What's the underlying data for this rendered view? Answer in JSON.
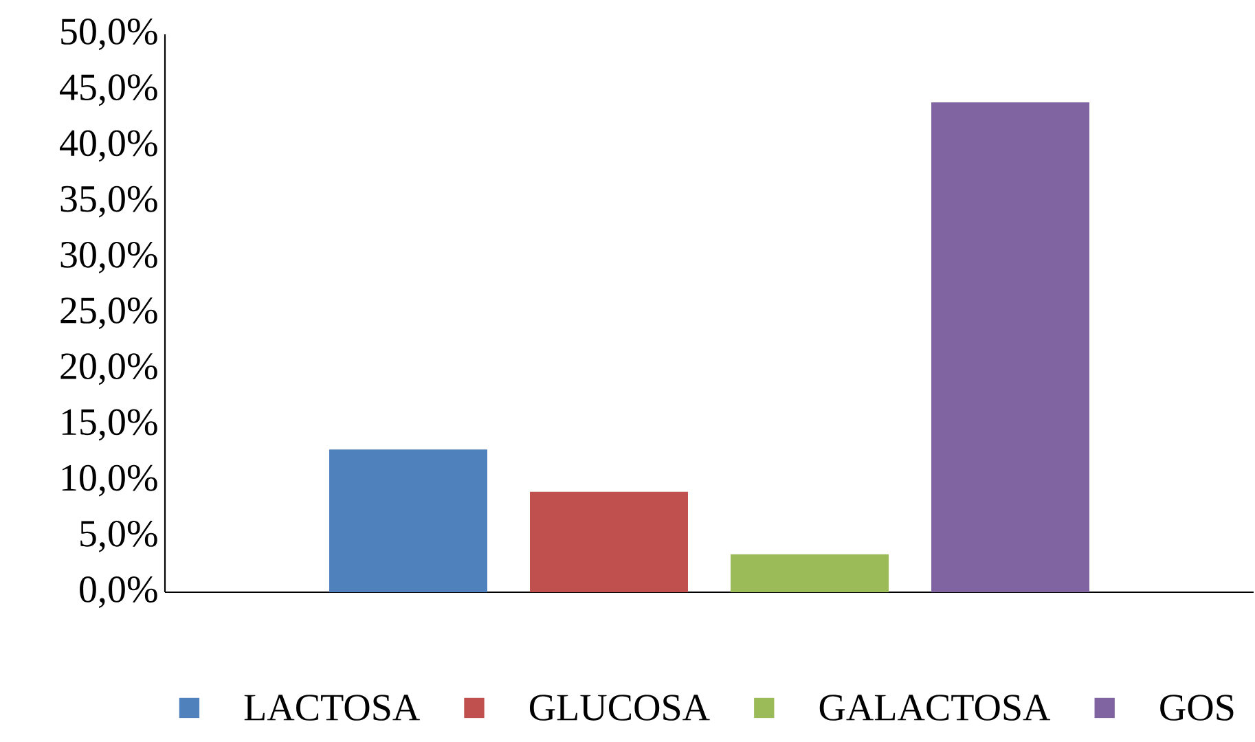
{
  "chart_data": {
    "type": "bar",
    "categories": [
      null
    ],
    "series": [
      {
        "name": "LACTOSA",
        "color": "#4f81bd",
        "values": [
          12.8
        ]
      },
      {
        "name": "GLUCOSA",
        "color": "#c0504d",
        "values": [
          9.0
        ]
      },
      {
        "name": "GALACTOSA",
        "color": "#9bbb59",
        "values": [
          3.4
        ]
      },
      {
        "name": "GOS",
        "color": "#8064a2",
        "values": [
          43.9
        ]
      }
    ],
    "ylim": [
      0,
      50
    ],
    "yticks": [
      {
        "value": 0,
        "label": "0,0%"
      },
      {
        "value": 5,
        "label": "5,0%"
      },
      {
        "value": 10,
        "label": "10,0%"
      },
      {
        "value": 15,
        "label": "15,0%"
      },
      {
        "value": 20,
        "label": "20,0%"
      },
      {
        "value": 25,
        "label": "25,0%"
      },
      {
        "value": 30,
        "label": "30,0%"
      },
      {
        "value": 35,
        "label": "35,0%"
      },
      {
        "value": 40,
        "label": "40,0%"
      },
      {
        "value": 45,
        "label": "45,0%"
      },
      {
        "value": 50,
        "label": "50,0%"
      }
    ],
    "grid": false,
    "legend": "bottom"
  }
}
